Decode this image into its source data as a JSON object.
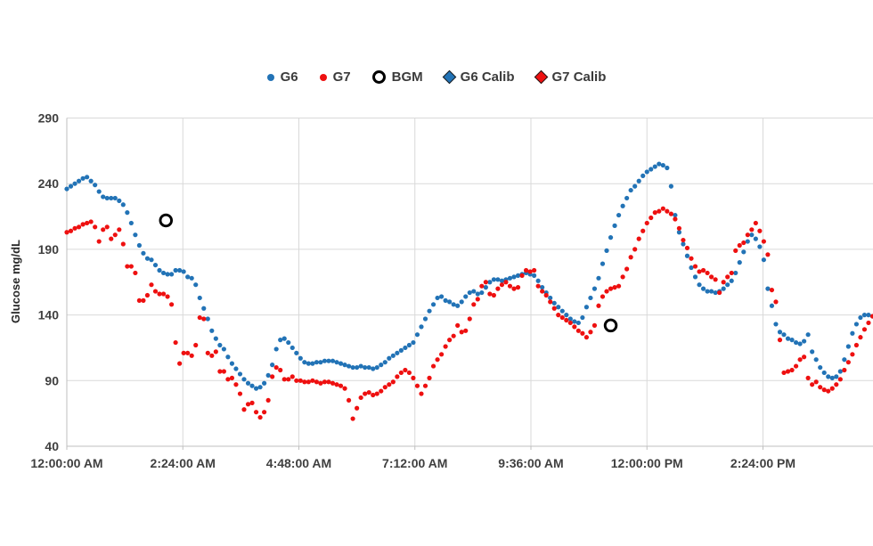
{
  "legend": {
    "items": [
      {
        "label": "G6",
        "marker": "dot",
        "color": "#2273B6"
      },
      {
        "label": "G7",
        "marker": "dot",
        "color": "#EE1010"
      },
      {
        "label": "BGM",
        "marker": "ring",
        "color": "#000000"
      },
      {
        "label": "G6 Calib",
        "marker": "diamond",
        "color": "#2273B6"
      },
      {
        "label": "G7 Calib",
        "marker": "diamond",
        "color": "#EE1010"
      }
    ]
  },
  "chart_data": {
    "type": "scatter",
    "title": "",
    "xlabel": "",
    "ylabel": "Glucose mg/dL",
    "ylim": [
      40,
      290
    ],
    "y_ticks": [
      40,
      90,
      140,
      190,
      240,
      290
    ],
    "x_ticks": [
      {
        "min": 0,
        "label": "12:00:00 AM"
      },
      {
        "min": 144,
        "label": "2:24:00 AM"
      },
      {
        "min": 288,
        "label": "4:48:00 AM"
      },
      {
        "min": 432,
        "label": "7:12:00 AM"
      },
      {
        "min": 576,
        "label": "9:36:00 AM"
      },
      {
        "min": 720,
        "label": "12:00:00 PM"
      },
      {
        "min": 864,
        "label": "2:24:00 PM"
      }
    ],
    "x_range_min": [
      0,
      1000
    ],
    "grid": true,
    "legend_position": "top",
    "sample_interval_min": 5,
    "series": [
      {
        "name": "G6",
        "color": "#2273B6",
        "start_min": 0,
        "step_min": 5,
        "values": [
          236,
          238,
          240,
          242,
          244,
          245,
          242,
          239,
          234,
          230,
          229,
          229,
          229,
          227,
          224,
          218,
          210,
          201,
          193,
          187,
          183,
          182,
          178,
          174,
          172,
          171,
          171,
          174,
          174,
          173,
          169,
          168,
          163,
          153,
          145,
          137,
          128,
          122,
          117,
          114,
          108,
          103,
          99,
          95,
          91,
          88,
          86,
          84,
          85,
          88,
          94,
          102,
          114,
          121,
          122,
          119,
          115,
          111,
          107,
          104,
          103,
          103,
          104,
          104,
          105,
          105,
          105,
          104,
          103,
          102,
          101,
          100,
          100,
          101,
          100,
          100,
          99,
          100,
          102,
          104,
          107,
          109,
          111,
          113,
          115,
          117,
          119,
          125,
          131,
          137,
          143,
          148,
          153,
          154,
          151,
          150,
          148,
          147,
          150,
          154,
          157,
          158,
          156,
          157,
          161,
          165,
          167,
          167,
          166,
          167,
          168,
          169,
          170,
          171,
          172,
          171,
          170,
          166,
          161,
          157,
          153,
          149,
          146,
          143,
          140,
          137,
          135,
          134,
          138,
          146,
          153,
          160,
          168,
          179,
          189,
          199,
          208,
          216,
          223,
          229,
          235,
          238,
          242,
          246,
          249,
          251,
          253,
          255,
          254,
          252,
          238,
          216,
          203,
          194,
          185,
          176,
          169,
          163,
          160,
          158,
          158,
          157,
          158,
          160,
          163,
          166,
          172,
          180,
          188,
          196,
          201,
          198,
          192,
          182,
          160,
          147,
          133,
          127,
          125,
          122,
          121,
          119,
          118,
          120,
          125,
          112,
          106,
          100,
          96,
          93,
          92,
          93,
          97,
          106,
          116,
          126,
          133,
          138,
          140,
          140,
          139
        ]
      },
      {
        "name": "G7",
        "color": "#EE1010",
        "start_min": 0,
        "step_min": 5,
        "values": [
          203,
          204,
          206,
          207,
          209,
          210,
          211,
          207,
          196,
          205,
          207,
          198,
          201,
          205,
          194,
          177,
          177,
          172,
          151,
          151,
          155,
          163,
          158,
          156,
          156,
          154,
          148,
          119,
          103,
          111,
          111,
          109,
          117,
          138,
          137,
          111,
          109,
          112,
          97,
          97,
          91,
          92,
          87,
          80,
          68,
          72,
          73,
          66,
          62,
          66,
          75,
          93,
          100,
          98,
          91,
          91,
          93,
          90,
          90,
          89,
          89,
          90,
          89,
          88,
          89,
          89,
          88,
          87,
          86,
          84,
          75,
          61,
          69,
          77,
          80,
          81,
          79,
          80,
          82,
          85,
          87,
          89,
          93,
          96,
          98,
          96,
          92,
          86,
          80,
          86,
          92,
          101,
          106,
          110,
          116,
          121,
          124,
          132,
          127,
          128,
          137,
          148,
          152,
          162,
          165,
          156,
          155,
          160,
          163,
          165,
          162,
          160,
          161,
          170,
          174,
          173,
          174,
          162,
          158,
          155,
          150,
          145,
          140,
          138,
          136,
          134,
          131,
          128,
          126,
          123,
          127,
          132,
          147,
          154,
          158,
          160,
          161,
          162,
          169,
          175,
          184,
          190,
          198,
          204,
          210,
          214,
          218,
          219,
          221,
          219,
          217,
          213,
          206,
          197,
          191,
          183,
          177,
          173,
          174,
          172,
          169,
          167,
          157,
          165,
          169,
          172,
          189,
          193,
          195,
          201,
          205,
          210,
          204,
          196,
          186,
          159,
          150,
          121,
          96,
          97,
          98,
          101,
          106,
          108,
          92,
          87,
          89,
          85,
          83,
          82,
          84,
          87,
          91,
          98,
          104,
          110,
          117,
          123,
          129,
          134,
          139
        ]
      }
    ],
    "bgm_points": [
      {
        "time_min": 123,
        "value": 212
      },
      {
        "time_min": 675,
        "value": 132
      }
    ],
    "calib_points": {
      "g6": [],
      "g7": []
    }
  },
  "style_colors": {
    "gridline": "#D9D9D9",
    "axis_line": "#BFBFBF",
    "tick_label": "#3f3f3f",
    "axis_title": "#262626",
    "bgm": "#000000"
  }
}
